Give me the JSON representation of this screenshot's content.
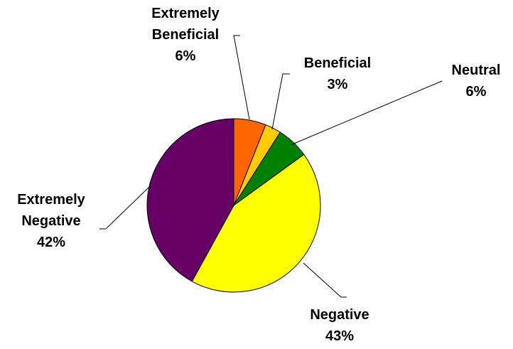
{
  "chart_data": {
    "type": "pie",
    "title": "",
    "start_angle_deg": 0,
    "direction": "clockwise",
    "slices": [
      {
        "label_lines": [
          "Extremely",
          "Beneficial"
        ],
        "pct_label": "6%",
        "value": 6,
        "color": "#FF6600"
      },
      {
        "label_lines": [
          "Beneficial"
        ],
        "pct_label": "3%",
        "value": 3,
        "color": "#FFCC00"
      },
      {
        "label_lines": [
          "Neutral"
        ],
        "pct_label": "6%",
        "value": 6,
        "color": "#008000"
      },
      {
        "label_lines": [
          "Negative"
        ],
        "pct_label": "43%",
        "value": 43,
        "color": "#FFFF00"
      },
      {
        "label_lines": [
          "Extremely",
          "Negative"
        ],
        "pct_label": "42%",
        "value": 42,
        "color": "#660066"
      }
    ]
  }
}
